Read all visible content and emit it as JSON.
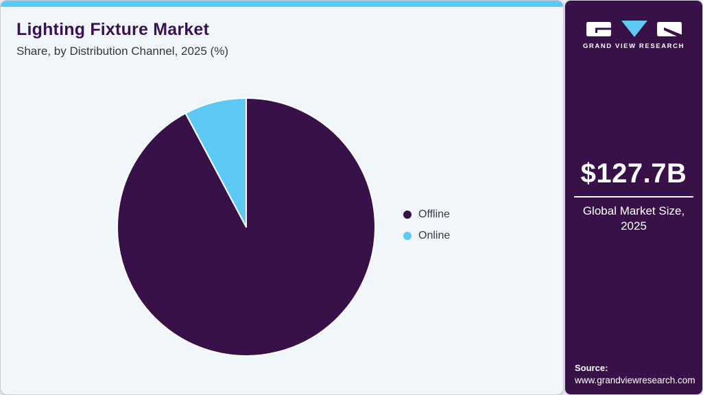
{
  "header": {
    "title": "Lighting Fixture Market",
    "subtitle": "Share, by Distribution Channel, 2025 (%)"
  },
  "chart_data": {
    "type": "pie",
    "title": "Lighting Fixture Market Share, by Distribution Channel, 2025 (%)",
    "categories": [
      "Offline",
      "Online"
    ],
    "values": [
      92.2,
      7.8
    ],
    "unit": "%",
    "legend_position": "right",
    "start_angle_deg": 0,
    "direction": "clockwise",
    "colors": {
      "Offline": "#381149",
      "Online": "#5EC9F4"
    }
  },
  "legend": {
    "items": [
      {
        "label": "Offline",
        "color": "#381149"
      },
      {
        "label": "Online",
        "color": "#5EC9F4"
      }
    ]
  },
  "sidebar": {
    "brand_name": "GRAND VIEW RESEARCH",
    "market_size_value": "$127.7B",
    "market_size_caption": "Global Market Size, 2025",
    "source_label": "Source:",
    "source_url": "www.grandviewresearch.com"
  },
  "colors": {
    "accent_blue": "#5EC9F4",
    "brand_purple": "#381149",
    "card_background": "#F1F6FA",
    "title_purple": "#3A1151",
    "body_text": "#35343F"
  }
}
